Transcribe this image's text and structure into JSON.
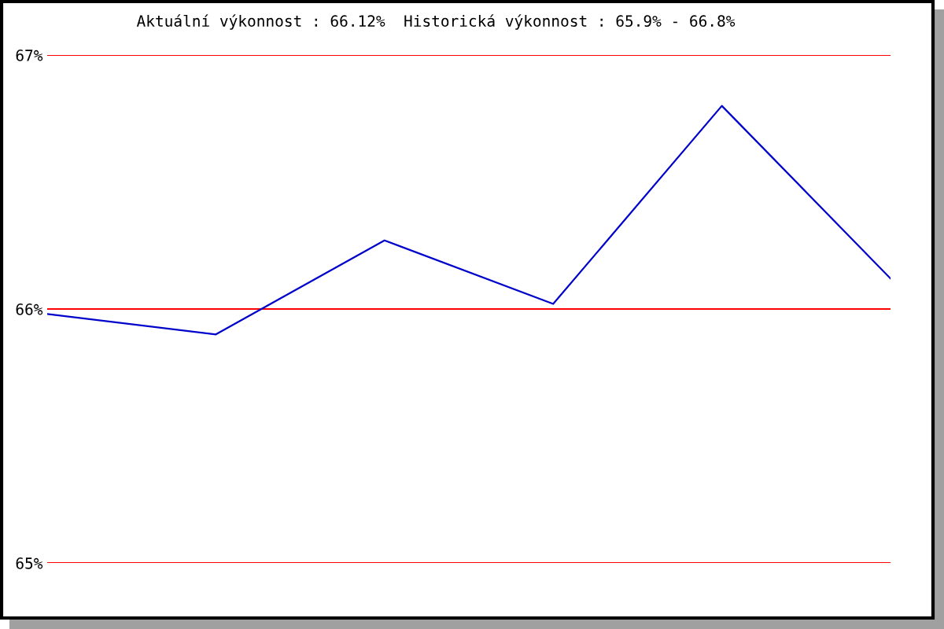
{
  "chart_data": {
    "type": "line",
    "title": "Aktuální výkonnost : 66.12%  Historická výkonnost : 65.9% - 66.8%",
    "categories": [
      null,
      null,
      null,
      null,
      null,
      null
    ],
    "series": [
      {
        "color": "#0000cc",
        "values": [
          65.98,
          65.9,
          66.27,
          66.02,
          66.8,
          66.12
        ]
      }
    ],
    "ylim": [
      65,
      67
    ],
    "yticks": [
      {
        "value": 65,
        "label": "65%"
      },
      {
        "value": 66,
        "label": "66%"
      },
      {
        "value": 67,
        "label": "67%"
      }
    ],
    "ref_lines": [
      {
        "axis": "y",
        "value": 65,
        "color": "#ff0000"
      },
      {
        "axis": "y",
        "value": 66,
        "color": "#ff0000"
      },
      {
        "axis": "y",
        "value": 67,
        "color": "#ff0000"
      }
    ],
    "tick_labels": "y",
    "marker": "none",
    "line_style": "solid"
  }
}
